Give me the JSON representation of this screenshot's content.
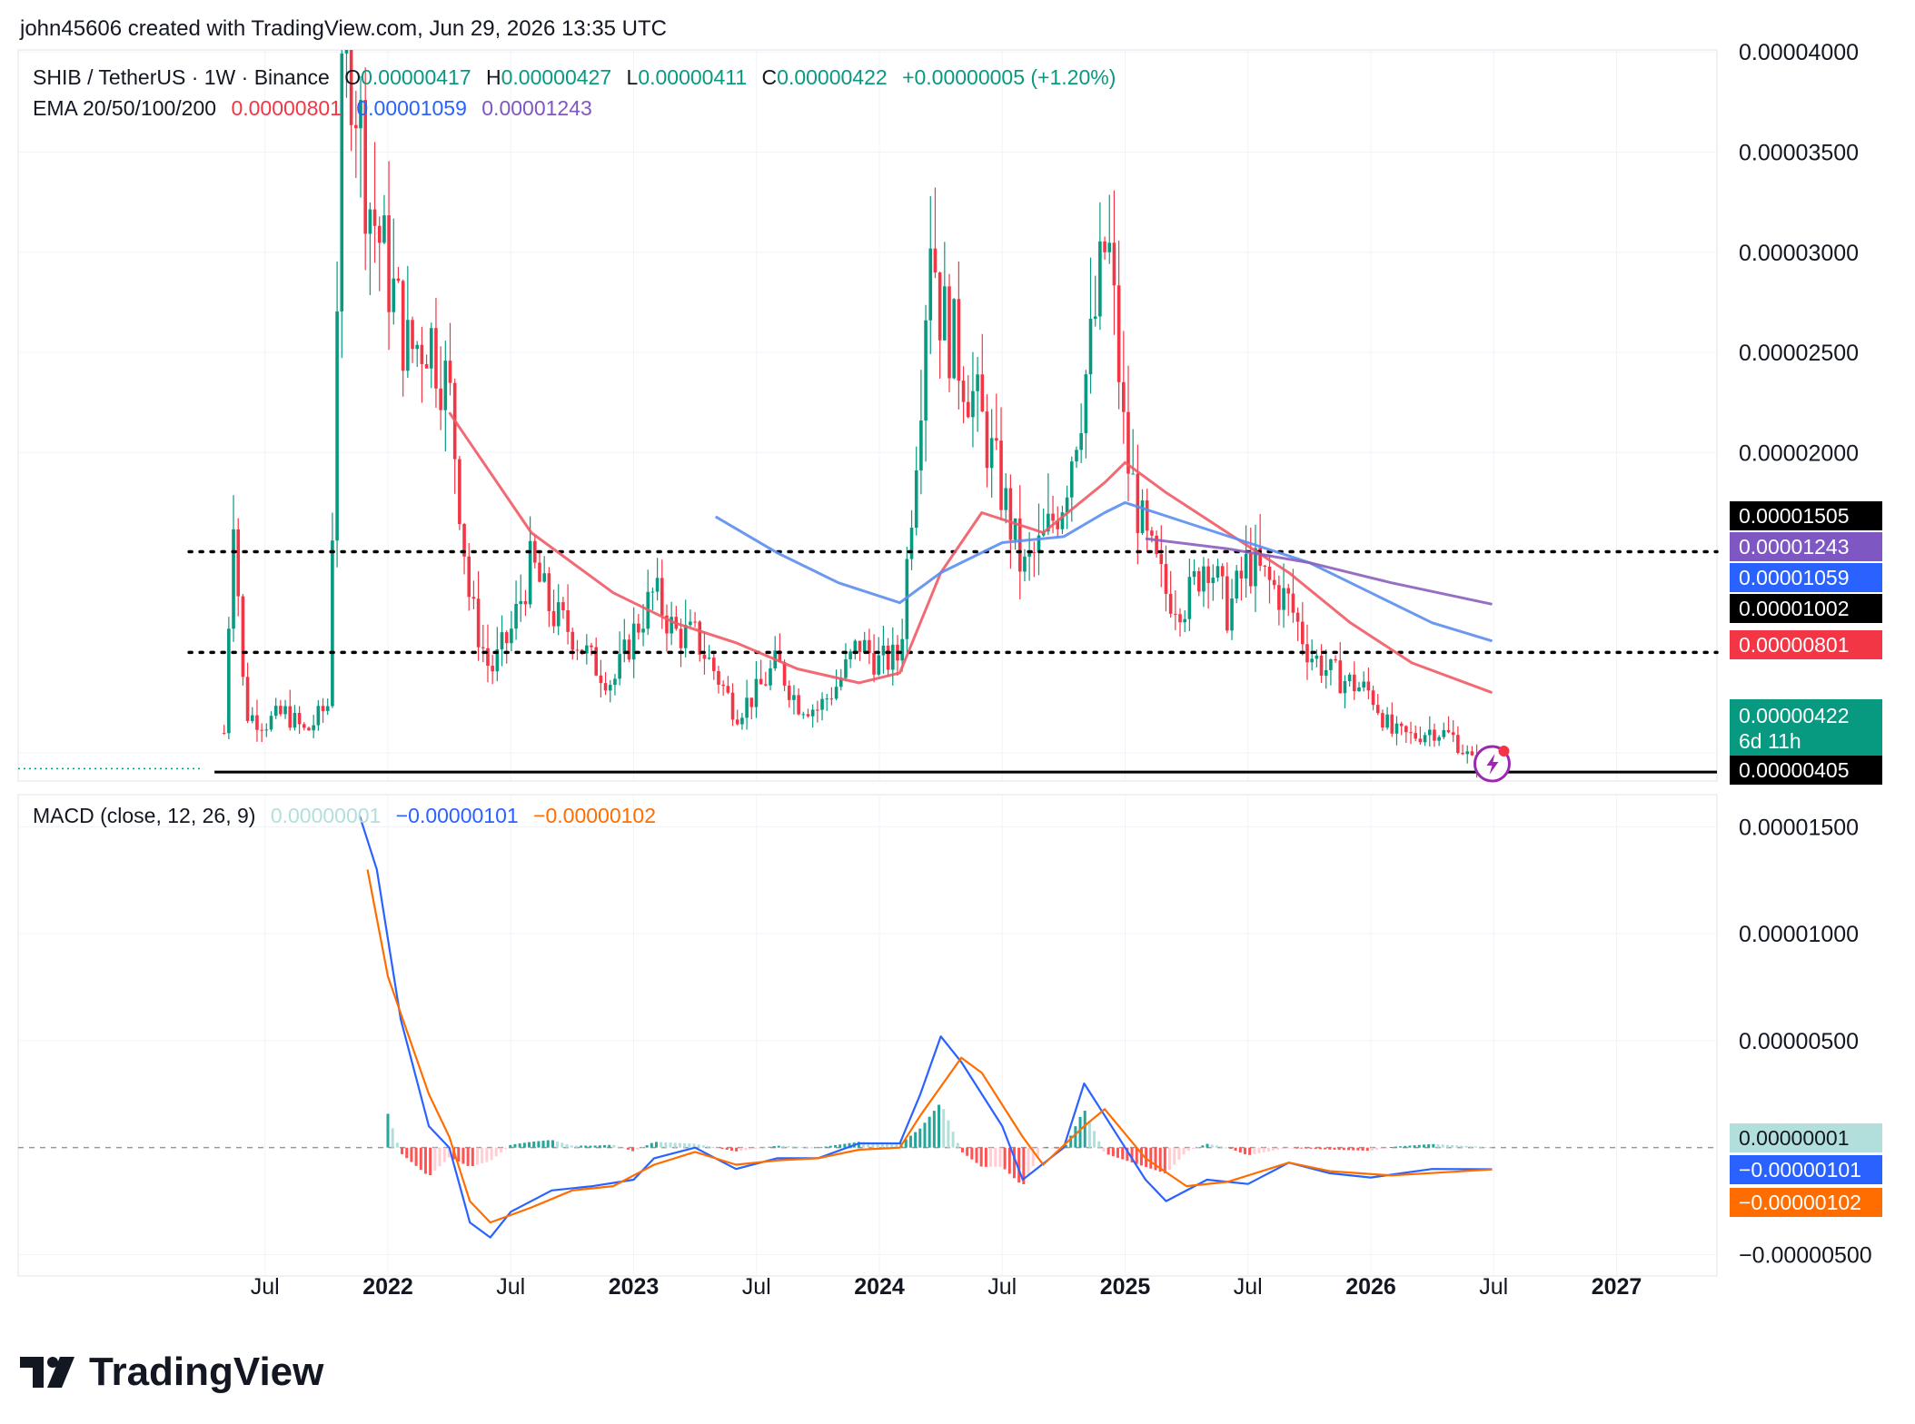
{
  "header": {
    "credit": "john45606 created with TradingView.com, Jun 29, 2026 13:35 UTC"
  },
  "legend": {
    "symbol": "SHIB / TetherUS · 1W · Binance",
    "o_label": "O",
    "o_value": "0.00000417",
    "h_label": "H",
    "h_value": "0.00000427",
    "l_label": "L",
    "l_value": "0.00000411",
    "c_label": "C",
    "c_value": "0.00000422",
    "change": "+0.00000005 (+1.20%)",
    "ema_label": "EMA 20/50/100/200",
    "ema20": "0.00000801",
    "ema50": "0.00001059",
    "ema100": "0.00001243",
    "macd_label": "MACD (close, 12, 26, 9)",
    "macd_hist": "0.00000001",
    "macd_line": "−0.00000101",
    "macd_signal": "−0.00000102"
  },
  "colors": {
    "up": "#089981",
    "down": "#f23645",
    "ema20": "#f05a65",
    "ema50": "#5b8def",
    "ema100": "#8b5fbf",
    "macd": "#2962ff",
    "signal": "#ff6d00",
    "hist_up_strong": "#26a69a",
    "hist_up_weak": "#b2dfdb",
    "hist_down_strong": "#ff5252",
    "hist_down_weak": "#ffcdd2"
  },
  "badges": {
    "level_1505": "0.00001505",
    "ema100": "0.00001243",
    "ema50": "0.00001059",
    "level_1002": "0.00001002",
    "ema20": "0.00000801",
    "price": "0.00000422",
    "countdown": "6d 11h",
    "level_405": "0.00000405",
    "macd_hist": "0.00000001",
    "macd_line": "−0.00000101",
    "macd_signal": "−0.00000102"
  },
  "logo": {
    "text": "TradingView",
    "icon": "tradingview-logo-icon"
  },
  "chart_data": [
    {
      "type": "candlestick",
      "title": "SHIB / TetherUS · 1W · Binance",
      "ylim": [
        3.6e-06,
        4.01e-05
      ],
      "y_ticks": [
        "0.00004000",
        "0.00003500",
        "0.00003000",
        "0.00002500",
        "0.00002000",
        "0.00000500"
      ],
      "x_ticks": [
        "Jul",
        "2022",
        "Jul",
        "2023",
        "Jul",
        "2024",
        "Jul",
        "2025",
        "Jul",
        "2026",
        "Jul",
        "2027"
      ],
      "horizontal_levels": [
        1.505e-05,
        1.002e-05,
        4.05e-06
      ],
      "price_path": [
        [
          "2021-05",
          6e-06
        ],
        [
          "2021-05-15",
          1.75e-05
        ],
        [
          "2021-06",
          7e-06
        ],
        [
          "2021-07",
          6.5e-06
        ],
        [
          "2021-08",
          7e-06
        ],
        [
          "2021-09",
          6e-06
        ],
        [
          "2021-10-05",
          7.5e-06
        ],
        [
          "2021-10-15",
          2.6e-05
        ],
        [
          "2021-10-28",
          4.2e-05
        ],
        [
          "2021-11-15",
          3.8e-05
        ],
        [
          "2021-12",
          3.3e-05
        ],
        [
          "2022-01",
          2.9e-05
        ],
        [
          "2022-02",
          2.5e-05
        ],
        [
          "2022-03",
          2.6e-05
        ],
        [
          "2022-04",
          2.3e-05
        ],
        [
          "2022-05",
          1.25e-05
        ],
        [
          "2022-06",
          9e-06
        ],
        [
          "2022-07",
          1.1e-05
        ],
        [
          "2022-08",
          1.45e-05
        ],
        [
          "2022-09",
          1.2e-05
        ],
        [
          "2022-10",
          1.1e-05
        ],
        [
          "2022-11",
          9.5e-06
        ],
        [
          "2022-12",
          8.5e-06
        ],
        [
          "2023-01",
          1.1e-05
        ],
        [
          "2023-02",
          1.3e-05
        ],
        [
          "2023-03",
          1.1e-05
        ],
        [
          "2023-04",
          1.08e-05
        ],
        [
          "2023-05",
          9e-06
        ],
        [
          "2023-06",
          7e-06
        ],
        [
          "2023-07",
          8e-06
        ],
        [
          "2023-08",
          9.5e-06
        ],
        [
          "2023-09",
          7.5e-06
        ],
        [
          "2023-10",
          7.2e-06
        ],
        [
          "2023-11",
          8.5e-06
        ],
        [
          "2023-12",
          1.05e-05
        ],
        [
          "2024-01",
          9.5e-06
        ],
        [
          "2024-02",
          9.8e-06
        ],
        [
          "2024-03-05",
          2.5e-05
        ],
        [
          "2024-03-15",
          3.2e-05
        ],
        [
          "2024-04",
          2.7e-05
        ],
        [
          "2024-05",
          2.45e-05
        ],
        [
          "2024-06",
          2.15e-05
        ],
        [
          "2024-07",
          1.8e-05
        ],
        [
          "2024-08",
          1.4e-05
        ],
        [
          "2024-09",
          1.55e-05
        ],
        [
          "2024-10",
          1.8e-05
        ],
        [
          "2024-11-10",
          2.5e-05
        ],
        [
          "2024-12-05",
          3.1e-05
        ],
        [
          "2024-12-25",
          2.3e-05
        ],
        [
          "2025-01",
          2e-05
        ],
        [
          "2025-02",
          1.55e-05
        ],
        [
          "2025-03",
          1.3e-05
        ],
        [
          "2025-04",
          1.25e-05
        ],
        [
          "2025-05",
          1.5e-05
        ],
        [
          "2025-06",
          1.2e-05
        ],
        [
          "2025-07",
          1.45e-05
        ],
        [
          "2025-08",
          1.35e-05
        ],
        [
          "2025-09",
          1.25e-05
        ],
        [
          "2025-10",
          1e-05
        ],
        [
          "2025-11",
          9e-06
        ],
        [
          "2025-12",
          8.5e-06
        ],
        [
          "2026-01",
          8e-06
        ],
        [
          "2026-02",
          6e-06
        ],
        [
          "2026-03",
          5.8e-06
        ],
        [
          "2026-04",
          6.2e-06
        ],
        [
          "2026-05",
          5.8e-06
        ],
        [
          "2026-06",
          4.5e-06
        ],
        [
          "2026-06-29",
          4.22e-06
        ]
      ],
      "series": [
        {
          "key": "ema20",
          "points": [
            [
              "2022-04",
              2.2e-05
            ],
            [
              "2022-08",
              1.6e-05
            ],
            [
              "2022-12",
              1.3e-05
            ],
            [
              "2023-03",
              1.15e-05
            ],
            [
              "2023-06",
              1.05e-05
            ],
            [
              "2023-09",
              9.2e-06
            ],
            [
              "2023-12",
              8.5e-06
            ],
            [
              "2024-02",
              9e-06
            ],
            [
              "2024-04",
              1.4e-05
            ],
            [
              "2024-06",
              1.7e-05
            ],
            [
              "2024-09",
              1.6e-05
            ],
            [
              "2024-12",
              1.85e-05
            ],
            [
              "2025-01",
              1.95e-05
            ],
            [
              "2025-03",
              1.8e-05
            ],
            [
              "2025-06",
              1.6e-05
            ],
            [
              "2025-09",
              1.4e-05
            ],
            [
              "2025-12",
              1.15e-05
            ],
            [
              "2026-03",
              9.5e-06
            ],
            [
              "2026-06-29",
              8.01e-06
            ]
          ]
        },
        {
          "key": "ema50",
          "points": [
            [
              "2023-05",
              1.68e-05
            ],
            [
              "2023-08",
              1.5e-05
            ],
            [
              "2023-11",
              1.35e-05
            ],
            [
              "2024-02",
              1.25e-05
            ],
            [
              "2024-04",
              1.4e-05
            ],
            [
              "2024-07",
              1.55e-05
            ],
            [
              "2024-10",
              1.58e-05
            ],
            [
              "2024-12",
              1.7e-05
            ],
            [
              "2025-01",
              1.75e-05
            ],
            [
              "2025-04",
              1.65e-05
            ],
            [
              "2025-07",
              1.55e-05
            ],
            [
              "2025-10",
              1.45e-05
            ],
            [
              "2026-01",
              1.3e-05
            ],
            [
              "2026-04",
              1.15e-05
            ],
            [
              "2026-06-29",
              1.059e-05
            ]
          ]
        },
        {
          "key": "ema100",
          "points": [
            [
              "2025-02",
              1.57e-05
            ],
            [
              "2025-06",
              1.52e-05
            ],
            [
              "2025-10",
              1.45e-05
            ],
            [
              "2026-02",
              1.35e-05
            ],
            [
              "2026-06-29",
              1.243e-05
            ]
          ]
        }
      ]
    },
    {
      "type": "line",
      "title": "MACD (close, 12, 26, 9)",
      "ylim": [
        -6e-06,
        1.65e-05
      ],
      "y_ticks": [
        "0.00001500",
        "0.00001000",
        "0.00000500",
        "−0.00000500"
      ],
      "series": [
        {
          "key": "macd",
          "points": [
            [
              "2021-11-20",
              1.55e-05
            ],
            [
              "2021-12-15",
              1.3e-05
            ],
            [
              "2022-01-20",
              6e-06
            ],
            [
              "2022-03",
              1e-06
            ],
            [
              "2022-04",
              0.0
            ],
            [
              "2022-05",
              -3.5e-06
            ],
            [
              "2022-06",
              -4.2e-06
            ],
            [
              "2022-07",
              -3e-06
            ],
            [
              "2022-09",
              -2e-06
            ],
            [
              "2022-11",
              -1.8e-06
            ],
            [
              "2023-01",
              -1.5e-06
            ],
            [
              "2023-02",
              -5e-07
            ],
            [
              "2023-04",
              0.0
            ],
            [
              "2023-06",
              -1e-06
            ],
            [
              "2023-08",
              -5e-07
            ],
            [
              "2023-10",
              -5e-07
            ],
            [
              "2023-12",
              2e-07
            ],
            [
              "2024-02",
              2e-07
            ],
            [
              "2024-03",
              2.5e-06
            ],
            [
              "2024-04",
              5.2e-06
            ],
            [
              "2024-05",
              4e-06
            ],
            [
              "2024-07",
              1e-06
            ],
            [
              "2024-08",
              -1.5e-06
            ],
            [
              "2024-10",
              0.0
            ],
            [
              "2024-11",
              3e-06
            ],
            [
              "2024-12",
              1.5e-06
            ],
            [
              "2025-02",
              -1.5e-06
            ],
            [
              "2025-03",
              -2.5e-06
            ],
            [
              "2025-05",
              -1.5e-06
            ],
            [
              "2025-07",
              -1.7e-06
            ],
            [
              "2025-09",
              -7e-07
            ],
            [
              "2025-11",
              -1.2e-06
            ],
            [
              "2026-01",
              -1.4e-06
            ],
            [
              "2026-04",
              -1e-06
            ],
            [
              "2026-06-29",
              -1.01e-06
            ]
          ]
        },
        {
          "key": "signal",
          "points": [
            [
              "2021-12-01",
              1.3e-05
            ],
            [
              "2022-01",
              8e-06
            ],
            [
              "2022-03",
              2.5e-06
            ],
            [
              "2022-04",
              5e-07
            ],
            [
              "2022-05",
              -2.5e-06
            ],
            [
              "2022-06",
              -3.5e-06
            ],
            [
              "2022-08",
              -2.8e-06
            ],
            [
              "2022-10",
              -2e-06
            ],
            [
              "2022-12",
              -1.8e-06
            ],
            [
              "2023-02",
              -8e-07
            ],
            [
              "2023-04",
              -2e-07
            ],
            [
              "2023-06",
              -8e-07
            ],
            [
              "2023-08",
              -6e-07
            ],
            [
              "2023-10",
              -5e-07
            ],
            [
              "2023-12",
              -1e-07
            ],
            [
              "2024-02",
              0.0
            ],
            [
              "2024-03",
              1.5e-06
            ],
            [
              "2024-05",
              4.2e-06
            ],
            [
              "2024-06",
              3.5e-06
            ],
            [
              "2024-08",
              5e-07
            ],
            [
              "2024-09",
              -8e-07
            ],
            [
              "2024-11",
              1e-06
            ],
            [
              "2024-12",
              1.8e-06
            ],
            [
              "2025-02",
              -5e-07
            ],
            [
              "2025-04",
              -1.8e-06
            ],
            [
              "2025-06",
              -1.6e-06
            ],
            [
              "2025-09",
              -7e-07
            ],
            [
              "2025-11",
              -1.1e-06
            ],
            [
              "2026-02",
              -1.3e-06
            ],
            [
              "2026-06-29",
              -1.02e-06
            ]
          ]
        }
      ]
    }
  ]
}
